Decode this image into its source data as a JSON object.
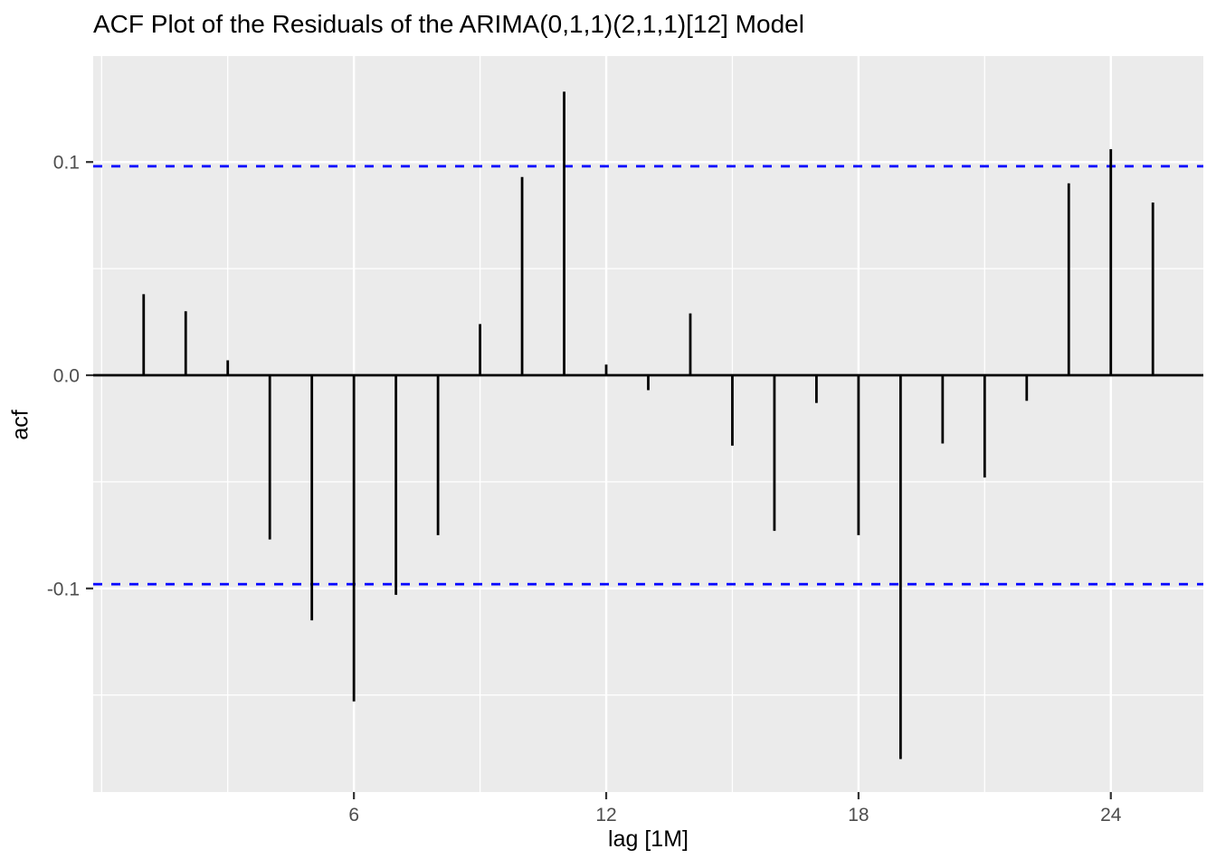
{
  "title": "ACF Plot of the Residuals of the ARIMA(0,1,1)(2,1,1)[12] Model",
  "chart_data": {
    "type": "bar",
    "subtype": "acf-stem-plot",
    "title": "ACF Plot of the Residuals of the ARIMA(0,1,1)(2,1,1)[12] Model",
    "xlabel": "lag [1M]",
    "ylabel": "acf",
    "lags": [
      1,
      2,
      3,
      4,
      5,
      6,
      7,
      8,
      9,
      10,
      11,
      12,
      13,
      14,
      15,
      16,
      17,
      18,
      19,
      20,
      21,
      22,
      23,
      24,
      25
    ],
    "values": [
      0.038,
      0.03,
      0.007,
      -0.077,
      -0.115,
      -0.153,
      -0.103,
      -0.075,
      0.024,
      0.093,
      0.133,
      0.005,
      -0.007,
      0.029,
      -0.033,
      -0.073,
      -0.013,
      -0.075,
      -0.18,
      -0.032,
      -0.048,
      -0.012,
      0.09,
      0.106,
      0.081
    ],
    "conf_bounds": {
      "upper": 0.098,
      "lower": -0.098,
      "line_style": "dashed",
      "color": "#0000FF"
    },
    "xlim": [
      -0.2,
      26.2
    ],
    "ylim": [
      -0.1955,
      0.1497
    ],
    "x_ticks": [
      {
        "label": "6",
        "value": 6
      },
      {
        "label": "12",
        "value": 12
      },
      {
        "label": "18",
        "value": 18
      },
      {
        "label": "24",
        "value": 24
      }
    ],
    "y_ticks": [
      {
        "label": "0.1",
        "value": 0.1
      },
      {
        "label": "0.0",
        "value": 0.0
      },
      {
        "label": "-0.1",
        "value": -0.1
      }
    ],
    "x_minor_gridlines": [
      0,
      3,
      9,
      15,
      21
    ],
    "y_minor_gridlines": [
      0.05,
      -0.05,
      -0.15
    ],
    "grid": true,
    "legend": false,
    "theme": {
      "background": "#FFFFFF",
      "panel_bg": "#EBEBEB",
      "grid_color": "#FFFFFF",
      "spike_color": "#000000",
      "axis_line_color": "#000000",
      "tick_mark_color": "#333333",
      "tick_label_color": "#4D4D4D",
      "title_color": "#000000",
      "axis_title_color": "#000000"
    }
  }
}
